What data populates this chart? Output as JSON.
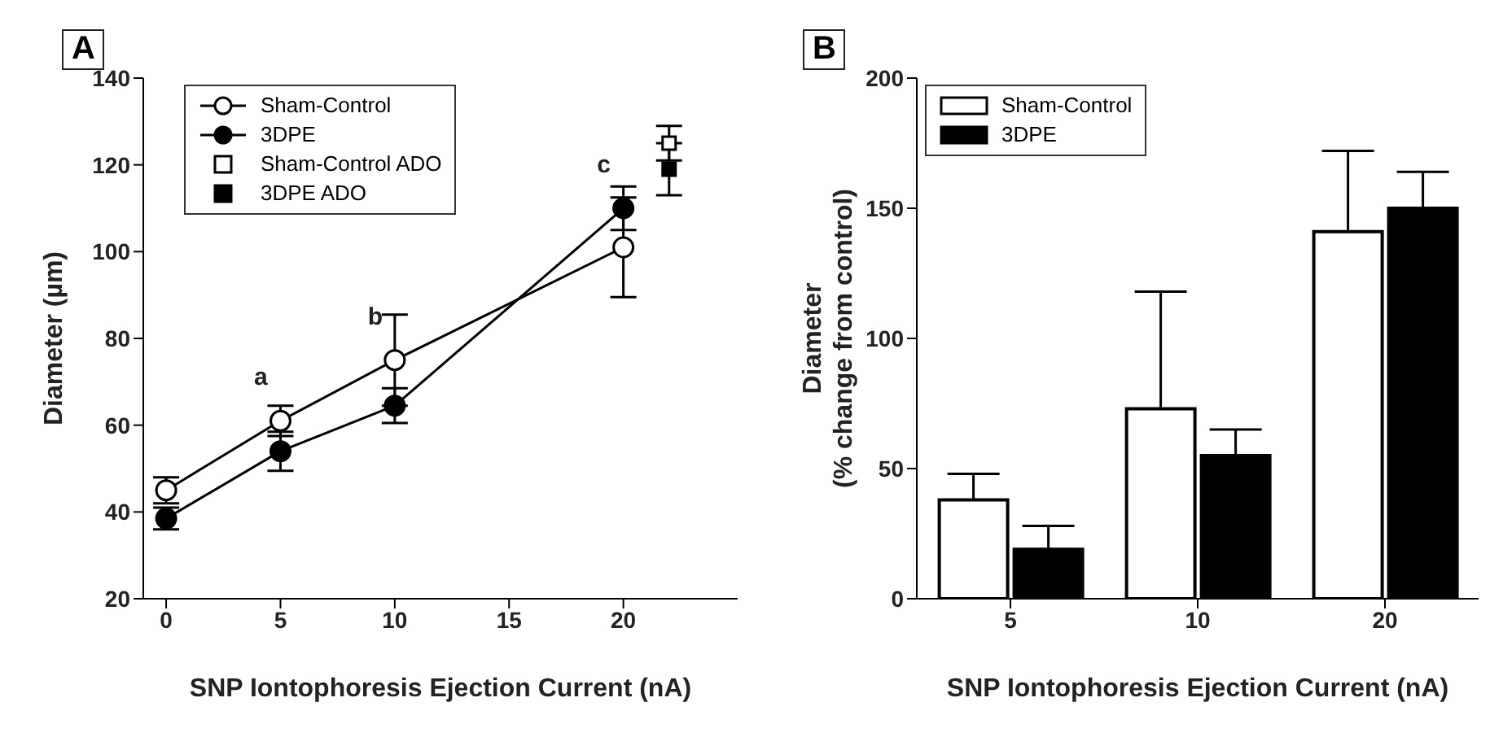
{
  "chart_data": [
    {
      "type": "line",
      "title": "A",
      "xlabel": "SNP Iontophoresis Ejection Current (nA)",
      "ylabel": "Diameter (µm)",
      "xlim": [
        -1,
        25
      ],
      "xticks": [
        0,
        5,
        10,
        15,
        20
      ],
      "ylim": [
        20,
        140
      ],
      "yticks": [
        20,
        40,
        60,
        80,
        100,
        120,
        140
      ],
      "legend": "top left",
      "grid": false,
      "series": [
        {
          "name": "Sham-Control",
          "type": "line",
          "marker": "circle",
          "color": "#ffffff",
          "x": [
            0,
            5,
            10,
            20
          ],
          "values": [
            45,
            61,
            75,
            101
          ],
          "errors": [
            3,
            3.5,
            10.5,
            11.5
          ]
        },
        {
          "name": "3DPE",
          "type": "line",
          "marker": "circle",
          "color": "#000000",
          "x": [
            0,
            5,
            10,
            20
          ],
          "values": [
            38.5,
            54,
            64.5,
            110
          ],
          "errors": [
            2.5,
            4.5,
            4,
            5
          ]
        },
        {
          "name": "Sham-Control ADO",
          "type": "scatter",
          "marker": "square",
          "color": "#ffffff",
          "x": [
            22
          ],
          "values": [
            125
          ],
          "errors": [
            4
          ]
        },
        {
          "name": "3DPE ADO",
          "type": "scatter",
          "marker": "square",
          "color": "#000000",
          "x": [
            22
          ],
          "values": [
            119
          ],
          "errors": [
            6
          ]
        }
      ],
      "annotations": [
        {
          "text": "a",
          "x": 5,
          "y": 61
        },
        {
          "text": "b",
          "x": 10,
          "y": 75
        },
        {
          "text": "c",
          "x": 20,
          "y": 110
        }
      ]
    },
    {
      "type": "bar",
      "title": "B",
      "xlabel": "SNP Iontophoresis Ejection Current (nA)",
      "ylabel": "Diameter\n(% change from control)",
      "categories": [
        "5",
        "10",
        "20"
      ],
      "ylim": [
        0,
        200
      ],
      "yticks": [
        0,
        50,
        100,
        150,
        200
      ],
      "legend": "top left",
      "grid": false,
      "series": [
        {
          "name": "Sham-Control",
          "color": "#ffffff",
          "values": [
            38,
            73,
            141
          ],
          "errors": [
            [
              38,
              48
            ],
            [
              73,
              118
            ],
            [
              141,
              172
            ]
          ]
        },
        {
          "name": "3DPE",
          "color": "#000000",
          "values": [
            19,
            55,
            150
          ],
          "errors": [
            [
              19,
              28
            ],
            [
              55,
              65
            ],
            [
              150,
              164
            ]
          ]
        }
      ]
    }
  ]
}
